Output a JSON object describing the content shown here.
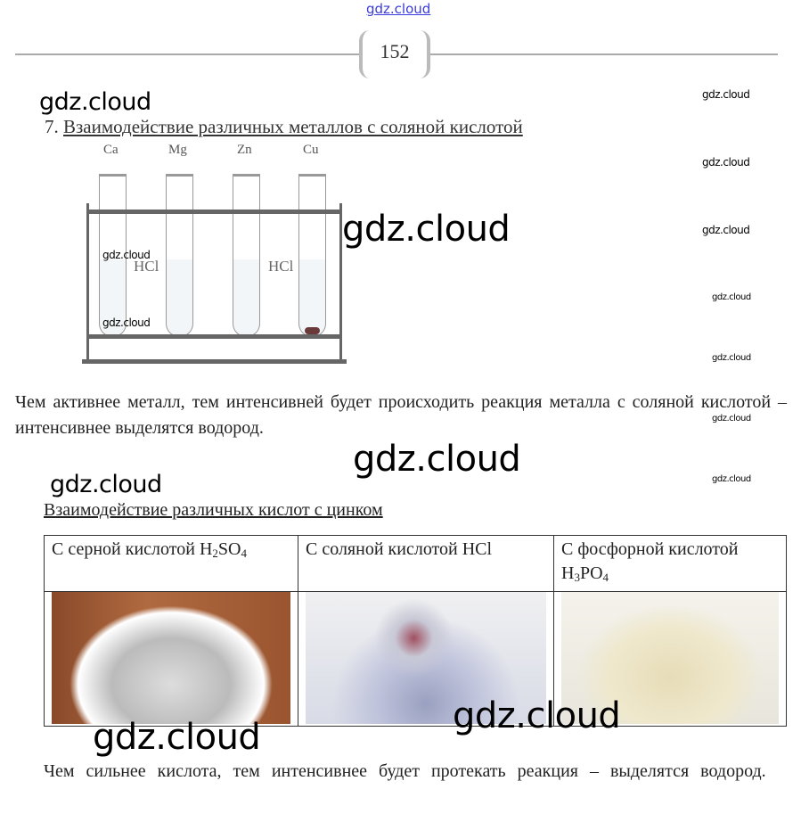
{
  "header": {
    "site_link": "gdz.cloud",
    "page_number": "152"
  },
  "section7": {
    "number": "7.",
    "title": "Взаимодействие различных металлов с соляной кислотой",
    "metals": [
      "Ca",
      "Mg",
      "Zn",
      "Cu"
    ],
    "tube_labels": [
      "HCl",
      "HCl"
    ],
    "paragraph": "Чем активнее металл, тем интенсивней будет происходить реакция металла с соляной кислотой – интенсивнее выделятся водород."
  },
  "acids": {
    "title": "Взаимодействие различных кислот с цинком",
    "columns": [
      {
        "prefix": "С серной кислотой ",
        "f1": "H",
        "s1": "2",
        "f2": "SO",
        "s2": "4"
      },
      {
        "prefix": "С соляной кислотой ",
        "f1": "HCl"
      },
      {
        "prefix": "С фосфорной кислотой ",
        "f1": "H",
        "s1": "3",
        "f2": "PO",
        "s2": "4"
      }
    ],
    "paragraph": "Чем сильнее кислота, тем интенсивнее будет протекать реакция – выделятся водород."
  },
  "watermark": "gdz.cloud",
  "colors": {
    "link": "#3b3bd8",
    "rule": "#aaaaaa"
  }
}
